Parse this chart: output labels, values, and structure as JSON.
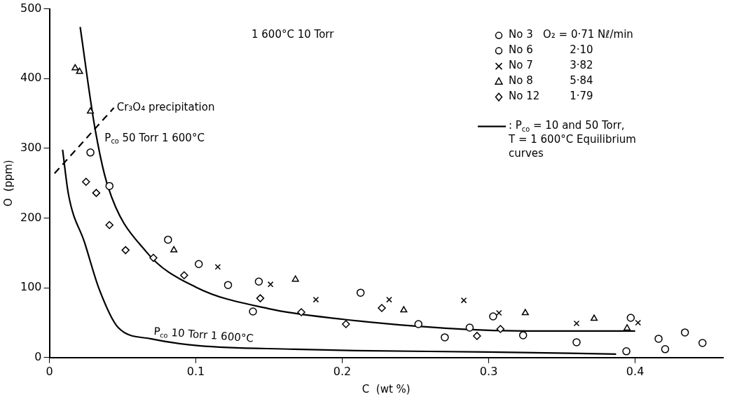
{
  "chart_data": {
    "type": "scatter",
    "xlabel": "C  (wt %)",
    "ylabel": "O  (ppm)",
    "xlim": [
      0,
      0.46
    ],
    "xticks": [
      0,
      0.1,
      0.2,
      0.3,
      0.4
    ],
    "ylim": [
      0,
      500
    ],
    "yticks": [
      0,
      100,
      200,
      300,
      400,
      500
    ],
    "grid": false,
    "legend": "top right",
    "annotations": [
      "1 600°C 10 Torr",
      ": P$_{co}$ = 10 and 50 Torr, T = 1 600°C Equilibrium curves",
      {
        "text": "Cr₃O₄ precipitation",
        "x": 0.046,
        "y": 358
      }
    ],
    "series": [
      {
        "name": "No 3   O₂ = 0·71 Nℓ/min",
        "color": "#000000",
        "marker": "circle",
        "x": [
          0.028,
          0.041,
          0.081,
          0.139,
          0.27,
          0.3235,
          0.394,
          0.4205
        ],
        "values": [
          294,
          246,
          169,
          66,
          29,
          32,
          9,
          12
        ]
      },
      {
        "name": "No 6           2·10",
        "color": "#000000",
        "marker": "circle",
        "x": [
          0.102,
          0.122,
          0.143,
          0.2125,
          0.252,
          0.287,
          0.303,
          0.36,
          0.397,
          0.416,
          0.434,
          0.446
        ],
        "values": [
          134,
          104,
          109,
          93,
          48,
          43,
          59,
          22,
          57,
          27,
          36,
          21
        ]
      },
      {
        "name": "No 7           3·82",
        "color": "#000000",
        "marker": "cross",
        "x": [
          0.115,
          0.151,
          0.182,
          0.232,
          0.283,
          0.307,
          0.36,
          0.402
        ],
        "values": [
          130,
          105,
          83,
          83,
          82,
          64,
          49,
          50
        ]
      },
      {
        "name": "No 8           5·84",
        "color": "#000000",
        "marker": "triangle",
        "x": [
          0.0176,
          0.0206,
          0.028,
          0.085,
          0.168,
          0.242,
          0.325,
          0.372,
          0.3945
        ],
        "values": [
          415,
          410,
          353,
          154,
          112,
          68,
          64,
          56,
          42
        ]
      },
      {
        "name": "No 12         1·79",
        "color": "#000000",
        "marker": "diamond",
        "x": [
          0.025,
          0.032,
          0.041,
          0.052,
          0.071,
          0.092,
          0.144,
          0.172,
          0.2025,
          0.227,
          0.292,
          0.308
        ],
        "values": [
          252,
          236,
          190,
          154,
          143,
          118,
          85,
          65,
          48,
          71,
          31,
          41
        ]
      },
      {
        "name": "P$_{co}$ 50 Torr 1 600°C",
        "type": "line",
        "color": "#000000",
        "marker": "none",
        "line_style": "solid",
        "x": [
          0.021,
          0.031,
          0.04,
          0.066,
          0.1,
          0.15,
          0.2,
          0.25,
          0.3,
          0.345,
          0.4
        ],
        "values": [
          474,
          330,
          245,
          152,
          101,
          70,
          55,
          45,
          39,
          38,
          38
        ]
      },
      {
        "name": "P$_{co}$ 10 Torr 1 600°C",
        "type": "line",
        "color": "#000000",
        "marker": "none",
        "line_style": "solid",
        "x": [
          0.009,
          0.013,
          0.024,
          0.034,
          0.047,
          0.069,
          0.102,
          0.167,
          0.209,
          0.299,
          0.387
        ],
        "values": [
          298,
          234,
          165,
          98,
          43,
          27,
          17,
          12,
          10,
          8,
          5
        ]
      },
      {
        "type": "line",
        "color": "#000000",
        "marker": "none",
        "line_style": "dashed",
        "x": [
          0.0035,
          0.044
        ],
        "values": [
          264,
          358
        ]
      }
    ]
  }
}
